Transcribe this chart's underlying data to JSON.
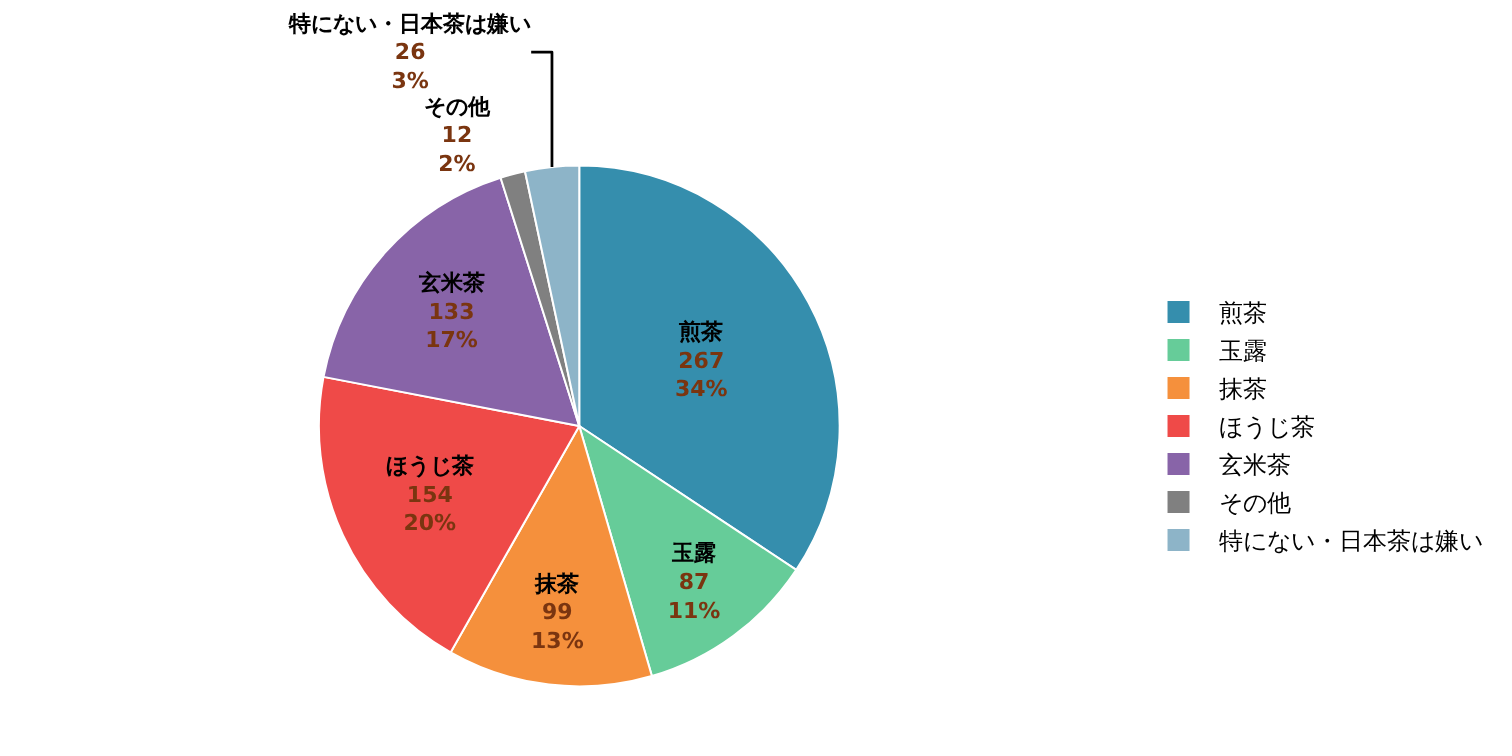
{
  "chart_data": {
    "type": "pie",
    "categories": [
      "煎茶",
      "玉露",
      "抹茶",
      "ほうじ茶",
      "玄米茶",
      "その他",
      "特にない・日本茶は嫌い"
    ],
    "values": [
      267,
      87,
      99,
      154,
      133,
      12,
      26
    ],
    "value_labels": [
      "267\n34%",
      "87\n11%",
      "99\n13%",
      "154\n20%",
      "133\n17%",
      "12\n2%",
      "26\n3%"
    ],
    "colors": [
      "#358ead",
      "#66cc99",
      "#f5903c",
      "#ef4a48",
      "#8864a8",
      "#808080",
      "#8db4c8"
    ],
    "legend": "right"
  }
}
